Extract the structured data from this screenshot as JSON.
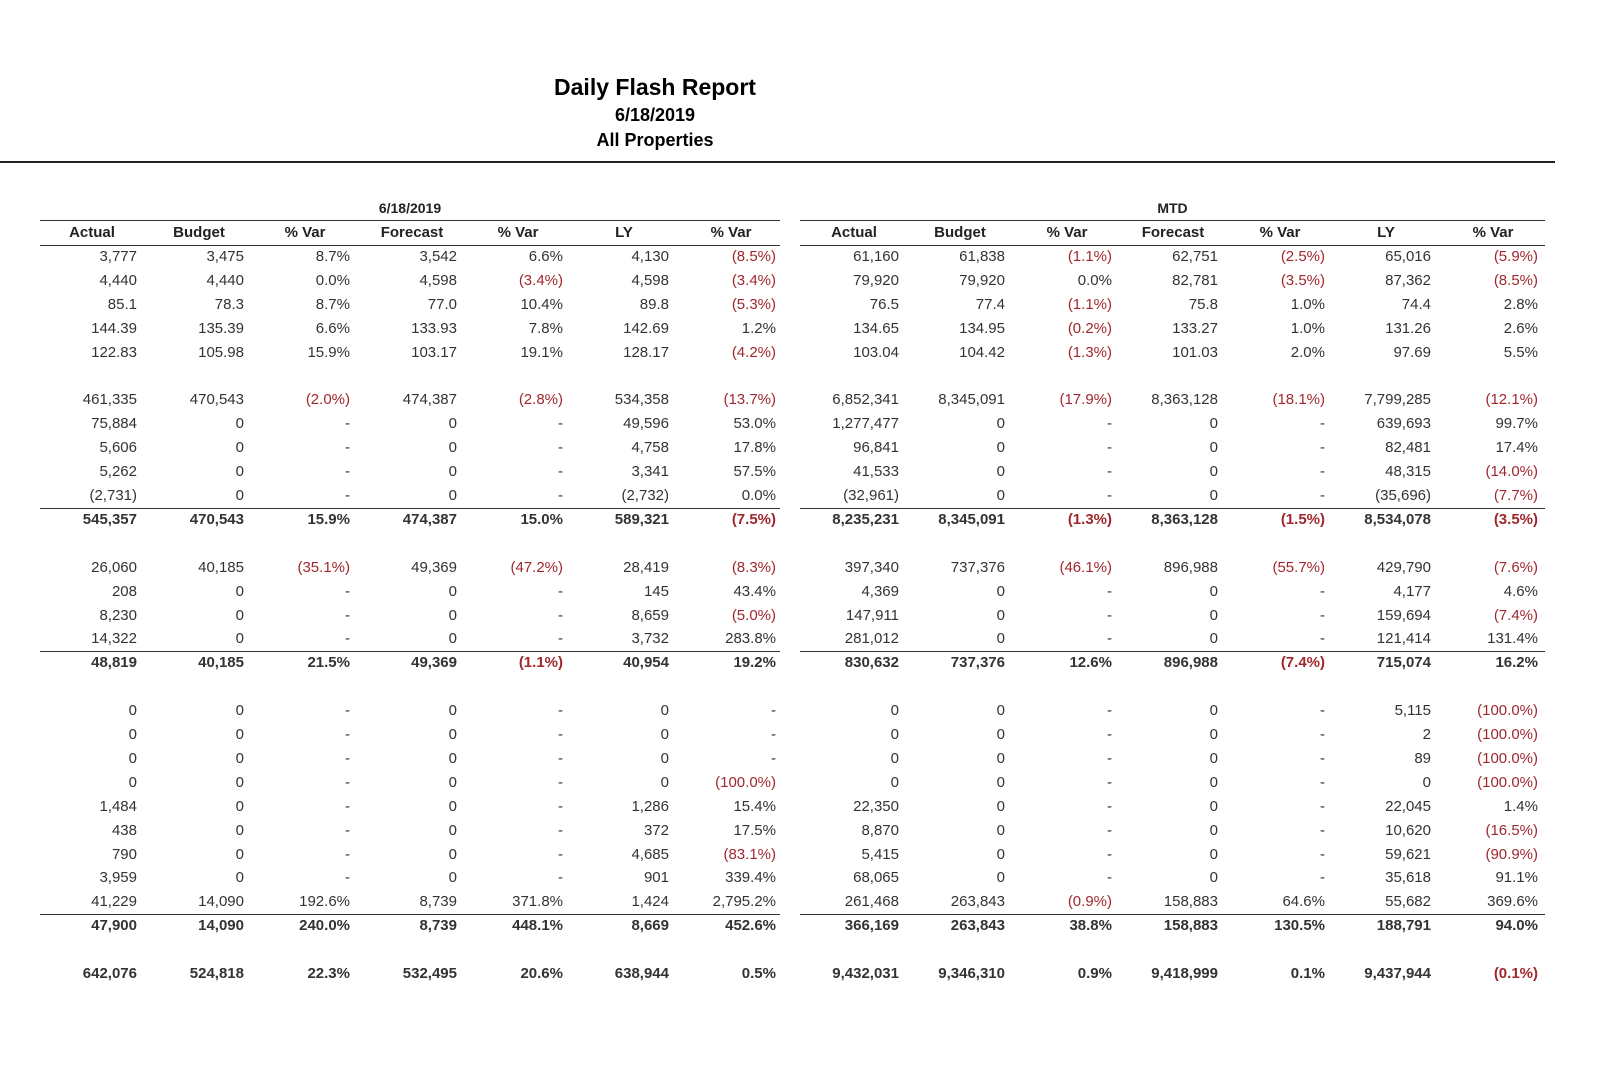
{
  "header": {
    "title": "Daily Flash Report",
    "date": "6/18/2019",
    "subtitle": "All Properties"
  },
  "table": {
    "groups": [
      "6/18/2019",
      "MTD"
    ],
    "columns": [
      "Actual",
      "Budget",
      "% Var",
      "Forecast",
      "% Var",
      "LY",
      "% Var",
      "Actual",
      "Budget",
      "% Var",
      "Forecast",
      "% Var",
      "LY",
      "% Var"
    ],
    "sections": [
      {
        "rows": [
          [
            "3,777",
            "3,475",
            "8.7%",
            "3,542",
            "6.6%",
            "4,130",
            "(8.5%)",
            "61,160",
            "61,838",
            "(1.1%)",
            "62,751",
            "(2.5%)",
            "65,016",
            "(5.9%)"
          ],
          [
            "4,440",
            "4,440",
            "0.0%",
            "4,598",
            "(3.4%)",
            "4,598",
            "(3.4%)",
            "79,920",
            "79,920",
            "0.0%",
            "82,781",
            "(3.5%)",
            "87,362",
            "(8.5%)"
          ],
          [
            "85.1",
            "78.3",
            "8.7%",
            "77.0",
            "10.4%",
            "89.8",
            "(5.3%)",
            "76.5",
            "77.4",
            "(1.1%)",
            "75.8",
            "1.0%",
            "74.4",
            "2.8%"
          ],
          [
            "144.39",
            "135.39",
            "6.6%",
            "133.93",
            "7.8%",
            "142.69",
            "1.2%",
            "134.65",
            "134.95",
            "(0.2%)",
            "133.27",
            "1.0%",
            "131.26",
            "2.6%"
          ],
          [
            "122.83",
            "105.98",
            "15.9%",
            "103.17",
            "19.1%",
            "128.17",
            "(4.2%)",
            "103.04",
            "104.42",
            "(1.3%)",
            "101.03",
            "2.0%",
            "97.69",
            "5.5%"
          ]
        ]
      },
      {
        "rows": [
          [
            "461,335",
            "470,543",
            "(2.0%)",
            "474,387",
            "(2.8%)",
            "534,358",
            "(13.7%)",
            "6,852,341",
            "8,345,091",
            "(17.9%)",
            "8,363,128",
            "(18.1%)",
            "7,799,285",
            "(12.1%)"
          ],
          [
            "75,884",
            "0",
            "-",
            "0",
            "-",
            "49,596",
            "53.0%",
            "1,277,477",
            "0",
            "-",
            "0",
            "-",
            "639,693",
            "99.7%"
          ],
          [
            "5,606",
            "0",
            "-",
            "0",
            "-",
            "4,758",
            "17.8%",
            "96,841",
            "0",
            "-",
            "0",
            "-",
            "82,481",
            "17.4%"
          ],
          [
            "5,262",
            "0",
            "-",
            "0",
            "-",
            "3,341",
            "57.5%",
            "41,533",
            "0",
            "-",
            "0",
            "-",
            "48,315",
            "(14.0%)"
          ],
          [
            "(2,731)",
            "0",
            "-",
            "0",
            "-",
            "(2,732)",
            "0.0%",
            "(32,961)",
            "0",
            "-",
            "0",
            "-",
            "(35,696)",
            "(7.7%)"
          ]
        ],
        "total": [
          "545,357",
          "470,543",
          "15.9%",
          "474,387",
          "15.0%",
          "589,321",
          "(7.5%)",
          "8,235,231",
          "8,345,091",
          "(1.3%)",
          "8,363,128",
          "(1.5%)",
          "8,534,078",
          "(3.5%)"
        ]
      },
      {
        "rows": [
          [
            "26,060",
            "40,185",
            "(35.1%)",
            "49,369",
            "(47.2%)",
            "28,419",
            "(8.3%)",
            "397,340",
            "737,376",
            "(46.1%)",
            "896,988",
            "(55.7%)",
            "429,790",
            "(7.6%)"
          ],
          [
            "208",
            "0",
            "-",
            "0",
            "-",
            "145",
            "43.4%",
            "4,369",
            "0",
            "-",
            "0",
            "-",
            "4,177",
            "4.6%"
          ],
          [
            "8,230",
            "0",
            "-",
            "0",
            "-",
            "8,659",
            "(5.0%)",
            "147,911",
            "0",
            "-",
            "0",
            "-",
            "159,694",
            "(7.4%)"
          ],
          [
            "14,322",
            "0",
            "-",
            "0",
            "-",
            "3,732",
            "283.8%",
            "281,012",
            "0",
            "-",
            "0",
            "-",
            "121,414",
            "131.4%"
          ]
        ],
        "total": [
          "48,819",
          "40,185",
          "21.5%",
          "49,369",
          "(1.1%)",
          "40,954",
          "19.2%",
          "830,632",
          "737,376",
          "12.6%",
          "896,988",
          "(7.4%)",
          "715,074",
          "16.2%"
        ]
      },
      {
        "rows": [
          [
            "0",
            "0",
            "-",
            "0",
            "-",
            "0",
            "-",
            "0",
            "0",
            "-",
            "0",
            "-",
            "5,115",
            "(100.0%)"
          ],
          [
            "0",
            "0",
            "-",
            "0",
            "-",
            "0",
            "-",
            "0",
            "0",
            "-",
            "0",
            "-",
            "2",
            "(100.0%)"
          ],
          [
            "0",
            "0",
            "-",
            "0",
            "-",
            "0",
            "-",
            "0",
            "0",
            "-",
            "0",
            "-",
            "89",
            "(100.0%)"
          ],
          [
            "0",
            "0",
            "-",
            "0",
            "-",
            "0",
            "(100.0%)",
            "0",
            "0",
            "-",
            "0",
            "-",
            "0",
            "(100.0%)"
          ],
          [
            "1,484",
            "0",
            "-",
            "0",
            "-",
            "1,286",
            "15.4%",
            "22,350",
            "0",
            "-",
            "0",
            "-",
            "22,045",
            "1.4%"
          ],
          [
            "438",
            "0",
            "-",
            "0",
            "-",
            "372",
            "17.5%",
            "8,870",
            "0",
            "-",
            "0",
            "-",
            "10,620",
            "(16.5%)"
          ],
          [
            "790",
            "0",
            "-",
            "0",
            "-",
            "4,685",
            "(83.1%)",
            "5,415",
            "0",
            "-",
            "0",
            "-",
            "59,621",
            "(90.9%)"
          ],
          [
            "3,959",
            "0",
            "-",
            "0",
            "-",
            "901",
            "339.4%",
            "68,065",
            "0",
            "-",
            "0",
            "-",
            "35,618",
            "91.1%"
          ],
          [
            "41,229",
            "14,090",
            "192.6%",
            "8,739",
            "371.8%",
            "1,424",
            "2,795.2%",
            "261,468",
            "263,843",
            "(0.9%)",
            "158,883",
            "64.6%",
            "55,682",
            "369.6%"
          ]
        ],
        "total": [
          "47,900",
          "14,090",
          "240.0%",
          "8,739",
          "448.1%",
          "8,669",
          "452.6%",
          "366,169",
          "263,843",
          "38.8%",
          "158,883",
          "130.5%",
          "188,791",
          "94.0%"
        ]
      }
    ],
    "grand_total": [
      "642,076",
      "524,818",
      "22.3%",
      "532,495",
      "20.6%",
      "638,944",
      "0.5%",
      "9,432,031",
      "9,346,310",
      "0.9%",
      "9,418,999",
      "0.1%",
      "9,437,944",
      "(0.1%)"
    ]
  }
}
